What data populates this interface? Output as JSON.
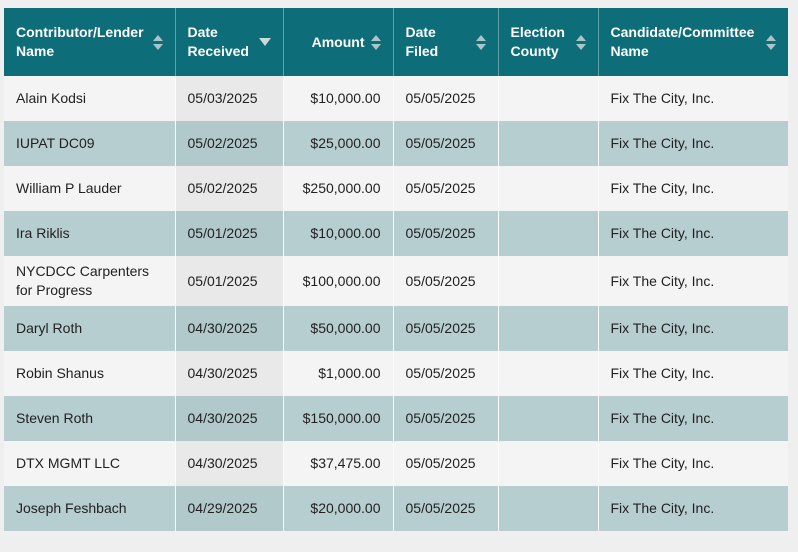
{
  "page": {
    "background": "#efefef"
  },
  "theme": {
    "header_bg": "#0d6e7a",
    "header_text": "#ffffff",
    "row_odd_bg": "#f4f4f4",
    "row_odd_sorted_bg": "#e9e9e9",
    "row_even_bg": "#b7ced1",
    "row_even_sorted_bg": "#b2c9cc",
    "text_color": "#212121"
  },
  "table": {
    "columns": [
      {
        "key": "contributor",
        "label": "Contributor/Lender Name",
        "sort_icon": "sort-toggle-icon",
        "sort_state": "unsorted",
        "align": "left",
        "sorted": false
      },
      {
        "key": "date_received",
        "label": "Date Received",
        "sort_icon": "sort-desc-icon",
        "sort_state": "descending",
        "align": "left",
        "sorted": true
      },
      {
        "key": "amount",
        "label": "Amount",
        "sort_icon": "sort-toggle-icon",
        "sort_state": "unsorted",
        "align": "right",
        "sorted": false
      },
      {
        "key": "date_filed",
        "label": "Date Filed",
        "sort_icon": "sort-toggle-icon",
        "sort_state": "unsorted",
        "align": "left",
        "sorted": false
      },
      {
        "key": "election_county",
        "label": "Election County",
        "sort_icon": "sort-toggle-icon",
        "sort_state": "unsorted",
        "align": "left",
        "sorted": false
      },
      {
        "key": "candidate",
        "label": "Candidate/Committee Name",
        "sort_icon": "sort-toggle-icon",
        "sort_state": "unsorted",
        "align": "left",
        "sorted": false
      }
    ],
    "rows": [
      {
        "contributor": "Alain Kodsi",
        "date_received": "05/03/2025",
        "amount": "$10,000.00",
        "date_filed": "05/05/2025",
        "election_county": "",
        "candidate": "Fix The City, Inc."
      },
      {
        "contributor": "IUPAT DC09",
        "date_received": "05/02/2025",
        "amount": "$25,000.00",
        "date_filed": "05/05/2025",
        "election_county": "",
        "candidate": "Fix The City, Inc."
      },
      {
        "contributor": "William P Lauder",
        "date_received": "05/02/2025",
        "amount": "$250,000.00",
        "date_filed": "05/05/2025",
        "election_county": "",
        "candidate": "Fix The City, Inc."
      },
      {
        "contributor": "Ira Riklis",
        "date_received": "05/01/2025",
        "amount": "$10,000.00",
        "date_filed": "05/05/2025",
        "election_county": "",
        "candidate": "Fix The City, Inc."
      },
      {
        "contributor": "NYCDCC Carpenters for Progress",
        "date_received": "05/01/2025",
        "amount": "$100,000.00",
        "date_filed": "05/05/2025",
        "election_county": "",
        "candidate": "Fix The City, Inc."
      },
      {
        "contributor": "Daryl Roth",
        "date_received": "04/30/2025",
        "amount": "$50,000.00",
        "date_filed": "05/05/2025",
        "election_county": "",
        "candidate": "Fix The City, Inc."
      },
      {
        "contributor": "Robin Shanus",
        "date_received": "04/30/2025",
        "amount": "$1,000.00",
        "date_filed": "05/05/2025",
        "election_county": "",
        "candidate": "Fix The City, Inc."
      },
      {
        "contributor": "Steven Roth",
        "date_received": "04/30/2025",
        "amount": "$150,000.00",
        "date_filed": "05/05/2025",
        "election_county": "",
        "candidate": "Fix The City, Inc."
      },
      {
        "contributor": "DTX MGMT LLC",
        "date_received": "04/30/2025",
        "amount": "$37,475.00",
        "date_filed": "05/05/2025",
        "election_county": "",
        "candidate": "Fix The City, Inc."
      },
      {
        "contributor": "Joseph Feshbach",
        "date_received": "04/29/2025",
        "amount": "$20,000.00",
        "date_filed": "05/05/2025",
        "election_county": "",
        "candidate": "Fix The City, Inc."
      }
    ]
  }
}
